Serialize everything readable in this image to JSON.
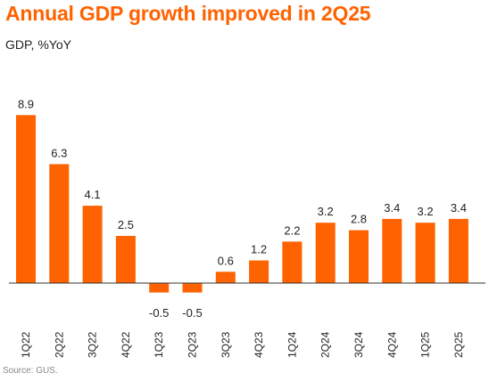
{
  "header": {
    "title": "Annual GDP growth improved in 2Q25",
    "subtitle": "GDP, %YoY"
  },
  "footer": {
    "source": "Source: GUS."
  },
  "colors": {
    "title": "#ff6200",
    "bar": "#ff6200",
    "axis": "#333333",
    "text": "#222222"
  },
  "chart_data": {
    "type": "bar",
    "title": "Annual GDP growth improved in 2Q25",
    "subtitle": "GDP, %YoY",
    "xlabel": "",
    "ylabel": "",
    "categories": [
      "1Q22",
      "2Q22",
      "3Q22",
      "4Q22",
      "1Q23",
      "2Q23",
      "3Q23",
      "4Q23",
      "1Q24",
      "2Q24",
      "3Q24",
      "4Q24",
      "1Q25",
      "2Q25"
    ],
    "values": [
      8.9,
      6.3,
      4.1,
      2.5,
      -0.5,
      -0.5,
      0.6,
      1.2,
      2.2,
      3.2,
      2.8,
      3.4,
      3.2,
      3.4
    ],
    "data_labels": [
      "8.9",
      "6.3",
      "4.1",
      "2.5",
      "-0.5",
      "-0.5",
      "0.6",
      "1.2",
      "2.2",
      "3.2",
      "2.8",
      "3.4",
      "3.2",
      "3.4"
    ],
    "grid": false,
    "legend": "none",
    "ylim": [
      -0.6,
      9.5
    ]
  }
}
